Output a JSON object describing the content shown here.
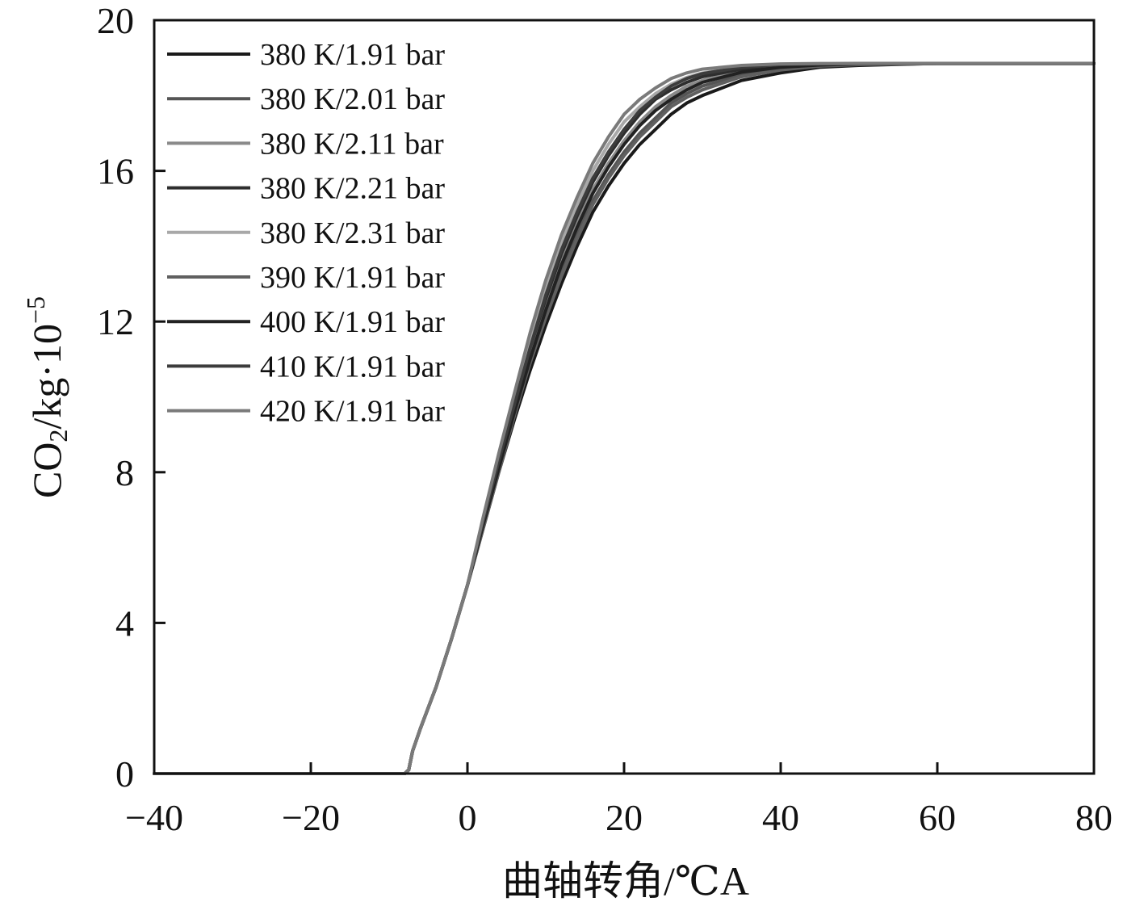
{
  "chart_data": {
    "type": "line",
    "xlabel": "曲轴转角/℃A",
    "ylabel_main": "CO",
    "ylabel_sub": "2",
    "ylabel_rest": "/kg·10",
    "ylabel_sup": "−5",
    "xlim": [
      -40,
      80
    ],
    "ylim": [
      0,
      20
    ],
    "xticks": [
      -40,
      -20,
      0,
      20,
      40,
      60,
      80
    ],
    "xtick_labels": [
      "−40",
      "−20",
      "0",
      "20",
      "40",
      "60",
      "80"
    ],
    "yticks": [
      0,
      4,
      8,
      12,
      16,
      20
    ],
    "ytick_labels": [
      "0",
      "4",
      "8",
      "12",
      "16",
      "20"
    ],
    "grid": false,
    "legend_position": "top-left",
    "x": [
      -40,
      -20,
      -8,
      -7.5,
      -7,
      -6,
      -4,
      -2,
      0,
      2,
      4,
      6,
      8,
      10,
      12,
      14,
      16,
      18,
      20,
      22,
      24,
      26,
      28,
      30,
      35,
      40,
      45,
      50,
      60,
      70,
      80
    ],
    "series": [
      {
        "name": "380 K/1.91 bar",
        "color": "#1a1a1a",
        "values": [
          0,
          0,
          0,
          0.1,
          0.6,
          1.2,
          2.3,
          3.6,
          5.0,
          6.5,
          8.0,
          9.4,
          10.7,
          11.9,
          13.0,
          14.0,
          14.9,
          15.6,
          16.2,
          16.7,
          17.1,
          17.5,
          17.8,
          18.0,
          18.4,
          18.6,
          18.75,
          18.8,
          18.85,
          18.85,
          18.85
        ]
      },
      {
        "name": "380 K/2.01 bar",
        "color": "#555555",
        "values": [
          0,
          0,
          0,
          0.1,
          0.6,
          1.2,
          2.3,
          3.6,
          5.0,
          6.6,
          8.1,
          9.6,
          10.9,
          12.2,
          13.3,
          14.3,
          15.2,
          15.9,
          16.5,
          17.0,
          17.4,
          17.8,
          18.05,
          18.25,
          18.55,
          18.7,
          18.8,
          18.83,
          18.85,
          18.85,
          18.85
        ]
      },
      {
        "name": "380 K/2.11 bar",
        "color": "#8a8a8a",
        "values": [
          0,
          0,
          0,
          0.1,
          0.6,
          1.2,
          2.3,
          3.6,
          5.0,
          6.6,
          8.2,
          9.7,
          11.1,
          12.4,
          13.6,
          14.6,
          15.5,
          16.2,
          16.8,
          17.3,
          17.7,
          18.0,
          18.25,
          18.4,
          18.65,
          18.78,
          18.82,
          18.84,
          18.85,
          18.85,
          18.85
        ]
      },
      {
        "name": "380 K/2.21 bar",
        "color": "#2e2e2e",
        "values": [
          0,
          0,
          0,
          0.1,
          0.6,
          1.2,
          2.3,
          3.6,
          5.0,
          6.7,
          8.3,
          9.8,
          11.3,
          12.6,
          13.8,
          14.8,
          15.7,
          16.4,
          17.0,
          17.5,
          17.9,
          18.15,
          18.35,
          18.5,
          18.7,
          18.8,
          18.83,
          18.84,
          18.85,
          18.85,
          18.85
        ]
      },
      {
        "name": "380 K/2.31 bar",
        "color": "#a8a8a8",
        "values": [
          0,
          0,
          0,
          0.1,
          0.6,
          1.2,
          2.3,
          3.6,
          5.0,
          6.7,
          8.4,
          10.0,
          11.5,
          12.9,
          14.1,
          15.1,
          16.0,
          16.7,
          17.3,
          17.7,
          18.05,
          18.3,
          18.48,
          18.6,
          18.76,
          18.82,
          18.84,
          18.85,
          18.85,
          18.85,
          18.85
        ]
      },
      {
        "name": "390 K/1.91 bar",
        "color": "#606060",
        "values": [
          0,
          0,
          0,
          0.1,
          0.6,
          1.2,
          2.3,
          3.6,
          5.0,
          6.5,
          8.0,
          9.5,
          10.9,
          12.1,
          13.2,
          14.2,
          15.1,
          15.8,
          16.4,
          16.9,
          17.3,
          17.7,
          17.95,
          18.15,
          18.5,
          18.68,
          18.78,
          18.82,
          18.85,
          18.85,
          18.85
        ]
      },
      {
        "name": "400 K/1.91 bar",
        "color": "#222222",
        "values": [
          0,
          0,
          0,
          0.1,
          0.6,
          1.2,
          2.3,
          3.6,
          5.0,
          6.6,
          8.1,
          9.6,
          11.0,
          12.3,
          13.5,
          14.5,
          15.4,
          16.1,
          16.7,
          17.2,
          17.6,
          17.9,
          18.15,
          18.35,
          18.62,
          18.75,
          18.81,
          18.84,
          18.85,
          18.85,
          18.85
        ]
      },
      {
        "name": "410 K/1.91 bar",
        "color": "#3c3c3c",
        "values": [
          0,
          0,
          0,
          0.1,
          0.6,
          1.2,
          2.3,
          3.6,
          5.0,
          6.7,
          8.3,
          9.8,
          11.3,
          12.7,
          13.9,
          14.9,
          15.8,
          16.5,
          17.1,
          17.6,
          17.95,
          18.25,
          18.45,
          18.58,
          18.75,
          18.82,
          18.84,
          18.85,
          18.85,
          18.85,
          18.85
        ]
      },
      {
        "name": "420 K/1.91 bar",
        "color": "#7a7a7a",
        "values": [
          0,
          0,
          0,
          0.1,
          0.6,
          1.2,
          2.3,
          3.6,
          5.0,
          6.8,
          8.5,
          10.1,
          11.7,
          13.1,
          14.3,
          15.3,
          16.2,
          16.9,
          17.5,
          17.9,
          18.2,
          18.45,
          18.6,
          18.7,
          18.8,
          18.84,
          18.85,
          18.85,
          18.85,
          18.85,
          18.85
        ]
      }
    ]
  }
}
